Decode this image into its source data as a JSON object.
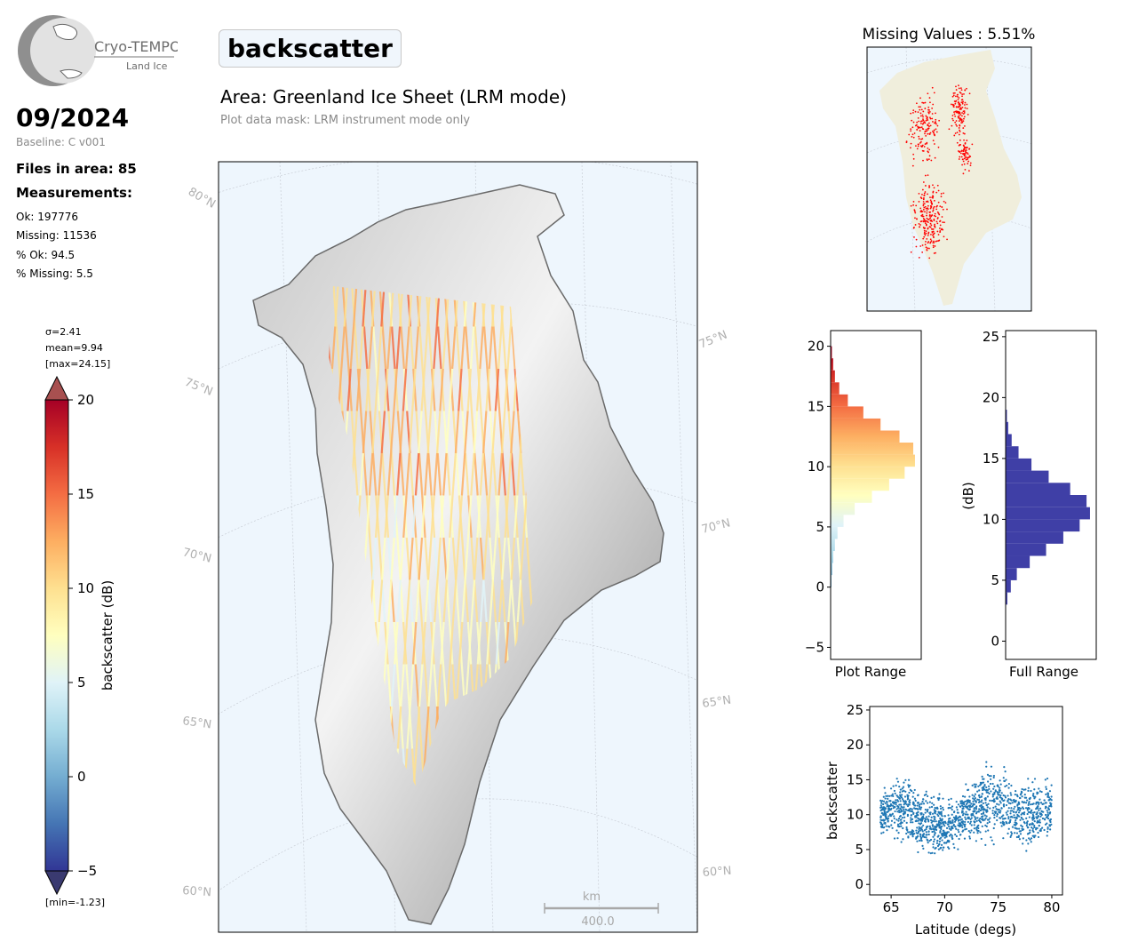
{
  "logo": {
    "name": "Cryo-TEMPO",
    "sub": "Land Ice"
  },
  "header": {
    "date": "09/2024",
    "baseline": "Baseline: C v001",
    "title": "backscatter",
    "area": "Area: Greenland Ice Sheet (LRM mode)",
    "mask": "Plot data mask: LRM instrument mode only"
  },
  "stats": {
    "files": "Files in area: 85",
    "measurements_title": "Measurements:",
    "ok": "Ok: 197776",
    "missing": "Missing: 11536",
    "pct_ok": "% Ok: 94.5",
    "pct_missing": "% Missing: 5.5"
  },
  "colorbar": {
    "label": "backscatter (dB)",
    "sigma": "σ=2.41",
    "mean": "mean=9.94",
    "max": "[max=24.15]",
    "min": "[min=-1.23]",
    "ticks": [
      "20",
      "15",
      "10",
      "5",
      "0",
      "−5"
    ],
    "tick_values": [
      20,
      15,
      10,
      5,
      0,
      -5
    ],
    "range": [
      -5,
      20
    ],
    "colormap": "RdYlBu_r",
    "colors": [
      "#313695",
      "#4575b4",
      "#74add1",
      "#abd9e9",
      "#e0f3f8",
      "#ffffbf",
      "#fee090",
      "#fdae61",
      "#f46d43",
      "#d73027",
      "#a50026"
    ]
  },
  "map": {
    "lat_labels_left": [
      "80°N",
      "75°N",
      "70°N",
      "65°N",
      "60°N"
    ],
    "lat_labels_right": [
      "75°N",
      "70°N",
      "65°N",
      "60°N"
    ],
    "scale_unit": "km",
    "scale_value": "400.0",
    "ocean_color": "#eef6fd"
  },
  "missing": {
    "title": "Missing Values : 5.51%",
    "land_color": "#f0eedc",
    "point_color": "#ff0000"
  },
  "chart_data": [
    {
      "type": "histogram",
      "orientation": "horizontal",
      "xlabel": "Plot Range",
      "ylabel": "",
      "ylim": [
        -6,
        21.3
      ],
      "yticks": [
        "20",
        "15",
        "10",
        "5",
        "0",
        "−5"
      ],
      "ytick_values": [
        20,
        15,
        10,
        5,
        0,
        -5
      ],
      "bins": [
        -5,
        -4,
        -3,
        -2,
        -1,
        0,
        1,
        2,
        3,
        4,
        5,
        6,
        7,
        8,
        9,
        10,
        11,
        12,
        13,
        14,
        15,
        16,
        17,
        18,
        19,
        20
      ],
      "relative_counts": [
        0,
        0,
        0,
        0,
        0.005,
        0.01,
        0.02,
        0.03,
        0.05,
        0.08,
        0.15,
        0.28,
        0.48,
        0.68,
        0.86,
        0.98,
        0.96,
        0.8,
        0.58,
        0.38,
        0.2,
        0.1,
        0.05,
        0.03,
        0.015,
        0.008
      ]
    },
    {
      "type": "histogram",
      "orientation": "horizontal",
      "xlabel": "Full Range",
      "ylabel": "(dB)",
      "ylim": [
        -1.5,
        25.5
      ],
      "yticks": [
        "25",
        "20",
        "15",
        "10",
        "5",
        "0"
      ],
      "ytick_values": [
        25,
        20,
        15,
        10,
        5,
        0
      ],
      "bins": [
        3,
        4,
        5,
        6,
        7,
        8,
        9,
        10,
        11,
        12,
        13,
        14,
        15,
        16,
        17,
        18,
        19
      ],
      "relative_counts": [
        0.02,
        0.06,
        0.13,
        0.28,
        0.47,
        0.67,
        0.86,
        0.98,
        0.94,
        0.75,
        0.5,
        0.3,
        0.15,
        0.07,
        0.03,
        0.015,
        0.006
      ],
      "color": "#3f3fa6"
    },
    {
      "type": "scatter",
      "xlabel": "Latitude (degs)",
      "ylabel": "backscatter",
      "xlim": [
        63,
        81
      ],
      "ylim": [
        -1.5,
        25.5
      ],
      "xticks": [
        "65",
        "70",
        "75",
        "80"
      ],
      "xtick_values": [
        65,
        70,
        75,
        80
      ],
      "yticks": [
        "25",
        "20",
        "15",
        "10",
        "5",
        "0"
      ],
      "ytick_values": [
        25,
        20,
        15,
        10,
        5,
        0
      ],
      "color": "#1f77b4",
      "x_range": [
        64,
        80
      ],
      "trend": [
        {
          "x": 64,
          "mean": 10,
          "spread": 4
        },
        {
          "x": 66,
          "mean": 11,
          "spread": 6
        },
        {
          "x": 68,
          "mean": 9,
          "spread": 6
        },
        {
          "x": 70,
          "mean": 8,
          "spread": 5
        },
        {
          "x": 72,
          "mean": 10,
          "spread": 5
        },
        {
          "x": 74,
          "mean": 12,
          "spread": 7
        },
        {
          "x": 76,
          "mean": 11,
          "spread": 6
        },
        {
          "x": 78,
          "mean": 10,
          "spread": 6
        },
        {
          "x": 80,
          "mean": 11,
          "spread": 5
        }
      ]
    }
  ]
}
